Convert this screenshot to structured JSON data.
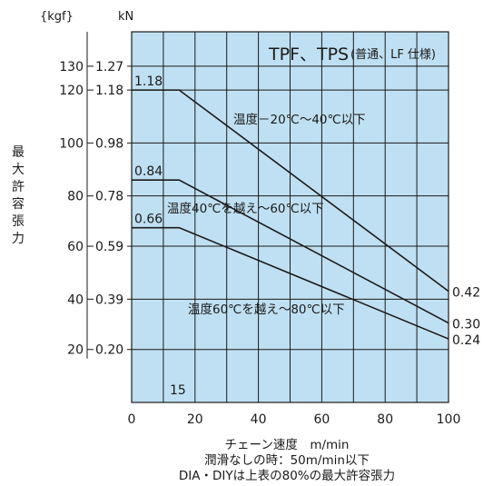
{
  "chart_data": {
    "type": "line",
    "title": "TPF、TPS",
    "title_note": "(普通、LF 仕様)",
    "ylabel": "最大許容張力",
    "xlabel": "チェーン速度　m/min",
    "footnotes": [
      "潤滑なしの時：50m/min以下",
      "DIA・DIYは上表の80%の最大許容張力"
    ],
    "x_ticks": [
      "0",
      "20",
      "40",
      "60",
      "80",
      "100"
    ],
    "xlim": [
      0,
      100
    ],
    "ylim": [
      0,
      1.4
    ],
    "y_unit_kgf": "{kgf}",
    "y_unit_kn": "kN",
    "y_ticks": [
      {
        "kgf": "130",
        "kn": "1.27",
        "v": 1.27
      },
      {
        "kgf": "120",
        "kn": "1.18",
        "v": 1.18
      },
      {
        "kgf": "100",
        "kn": "0.98",
        "v": 0.98
      },
      {
        "kgf": "80",
        "kn": "0.78",
        "v": 0.78
      },
      {
        "kgf": "60",
        "kn": "0.59",
        "v": 0.59
      },
      {
        "kgf": "40",
        "kn": "0.39",
        "v": 0.39
      },
      {
        "kgf": "20",
        "kn": "0.20",
        "v": 0.2
      }
    ],
    "x_annotation": "15",
    "grid": true,
    "background_color": "#bfe0f2",
    "series": [
      {
        "name": "温度－20℃～40℃以下",
        "start_label": "1.18",
        "end_label": "0.42",
        "x": [
          0,
          15,
          100
        ],
        "y": [
          1.18,
          1.18,
          0.42
        ]
      },
      {
        "name": "温度40℃を越え～60℃以下",
        "start_label": "0.84",
        "end_label": "0.30",
        "x": [
          0,
          15,
          100
        ],
        "y": [
          0.84,
          0.84,
          0.3
        ]
      },
      {
        "name": "温度60℃を越え～80℃以下",
        "start_label": "0.66",
        "end_label": "0.24",
        "x": [
          0,
          15,
          100
        ],
        "y": [
          0.66,
          0.66,
          0.24
        ]
      }
    ]
  }
}
